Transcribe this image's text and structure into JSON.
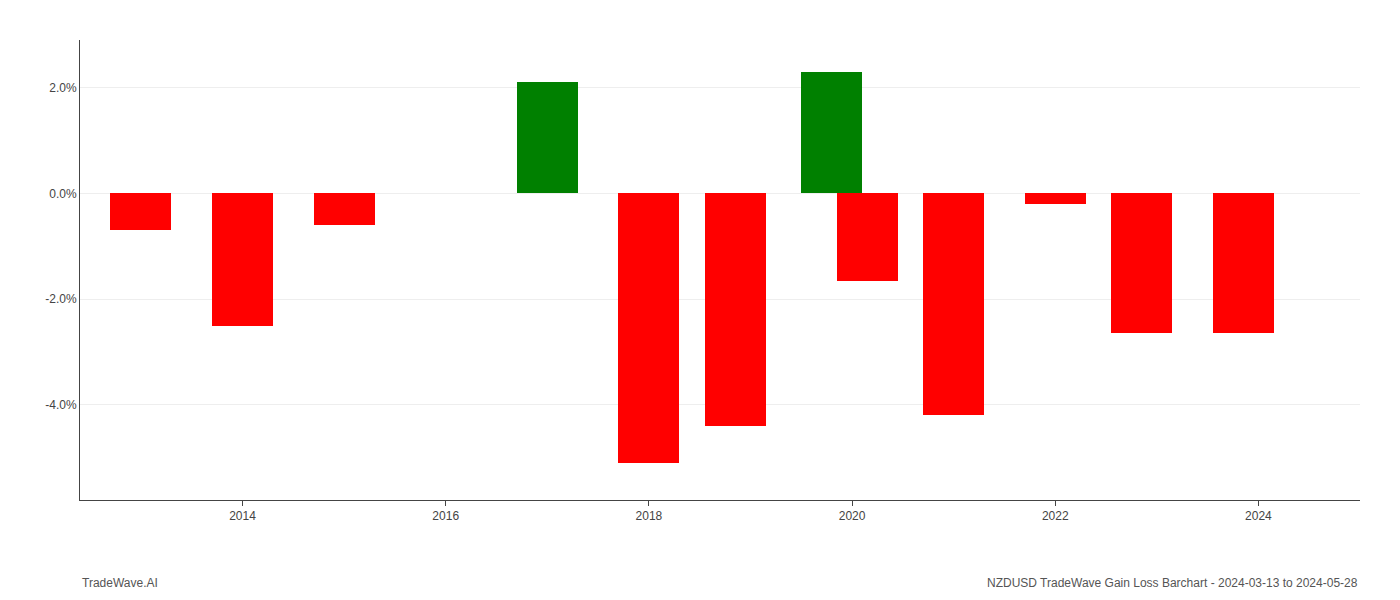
{
  "chart_data": {
    "type": "bar",
    "x": [
      2013,
      2014,
      2015,
      2017,
      2018,
      2018.85,
      2019.8,
      2020.15,
      2021,
      2022,
      2022.85,
      2023.85
    ],
    "values": [
      -0.7,
      -2.5,
      -0.6,
      2.1,
      -5.1,
      -4.4,
      2.3,
      -1.65,
      -4.2,
      -0.2,
      -2.65,
      -2.65
    ],
    "colors": [
      "#ff0000",
      "#ff0000",
      "#ff0000",
      "#008000",
      "#ff0000",
      "#ff0000",
      "#008000",
      "#ff0000",
      "#ff0000",
      "#ff0000",
      "#ff0000",
      "#ff0000"
    ],
    "xlim": [
      2012.4,
      2025.0
    ],
    "xticks": [
      2014,
      2016,
      2018,
      2020,
      2022,
      2024
    ],
    "ylim": [
      -5.8,
      2.9
    ],
    "yticks": [
      {
        "value": -4.0,
        "label": "-4.0%"
      },
      {
        "value": -2.0,
        "label": "-2.0%"
      },
      {
        "value": 0.0,
        "label": "0.0%"
      },
      {
        "value": 2.0,
        "label": "2.0%"
      }
    ],
    "grid": true,
    "annotations": [
      "TradeWave.AI",
      "NZDUSD TradeWave Gain Loss Barchart - 2024-03-13 to 2024-05-28"
    ]
  }
}
